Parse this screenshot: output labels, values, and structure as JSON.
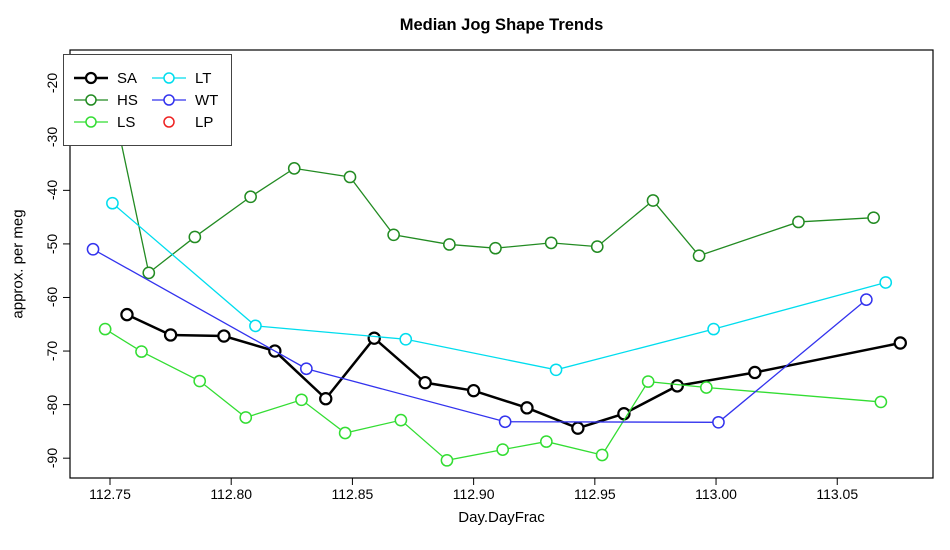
{
  "title": "Median Jog Shape Trends",
  "x_axis": {
    "label": "Day.DayFrac",
    "ticks": [
      "112.75",
      "112.80",
      "112.85",
      "112.90",
      "112.95",
      "113.00",
      "113.05"
    ]
  },
  "y_axis": {
    "label": "approx. per meg",
    "ticks": [
      "-20",
      "-30",
      "-40",
      "-50",
      "-60",
      "-70",
      "-80",
      "-90"
    ]
  },
  "legend": {
    "items": [
      {
        "label": "SA",
        "color": "#000000",
        "line": true
      },
      {
        "label": "HS",
        "color": "#228B22",
        "line": true
      },
      {
        "label": "LS",
        "color": "#33DD33",
        "line": true
      },
      {
        "label": "LT",
        "color": "#00DDEE",
        "line": true
      },
      {
        "label": "WT",
        "color": "#3333EE",
        "line": true
      },
      {
        "label": "LP",
        "color": "#EE2222",
        "line": false
      }
    ]
  },
  "chart_data": {
    "type": "line",
    "title": "Median Jog Shape Trends",
    "xlabel": "Day.DayFrac",
    "ylabel": "approx. per meg",
    "xlim": [
      112.7335,
      113.0895
    ],
    "ylim": [
      -93.7,
      -13.8
    ],
    "x_ticks": [
      112.75,
      112.8,
      112.85,
      112.9,
      112.95,
      113.0,
      113.05
    ],
    "y_ticks": [
      -20,
      -30,
      -40,
      -50,
      -60,
      -70,
      -80,
      -90
    ],
    "grid": false,
    "legend_position": "top-left",
    "marker": "open-circle",
    "series": [
      {
        "name": "SA",
        "color": "#000000",
        "line_width": 2.5,
        "marker_stroke": 2.2,
        "x": [
          112.757,
          112.775,
          112.797,
          112.818,
          112.839,
          112.859,
          112.88,
          112.9,
          112.922,
          112.943,
          112.962,
          112.984,
          113.016,
          113.076
        ],
        "y": [
          -63.2,
          -67.0,
          -67.2,
          -70.0,
          -78.9,
          -67.6,
          -75.9,
          -77.4,
          -80.6,
          -84.4,
          -81.7,
          -76.5,
          -74.0,
          -68.5
        ]
      },
      {
        "name": "HS",
        "color": "#228B22",
        "line_width": 1.3,
        "marker_stroke": 1.5,
        "x": [
          112.748,
          112.766,
          112.785,
          112.808,
          112.826,
          112.849,
          112.867,
          112.89,
          112.909,
          112.932,
          112.951,
          112.974,
          112.993,
          113.034,
          113.065
        ],
        "y": [
          -17.0,
          -55.4,
          -48.7,
          -41.2,
          -35.9,
          -37.5,
          -48.3,
          -50.1,
          -50.8,
          -49.8,
          -50.5,
          -41.9,
          -52.2,
          -45.9,
          -45.1
        ]
      },
      {
        "name": "LS",
        "color": "#33DD33",
        "line_width": 1.3,
        "marker_stroke": 1.5,
        "x": [
          112.748,
          112.763,
          112.787,
          112.806,
          112.829,
          112.847,
          112.87,
          112.889,
          112.912,
          112.93,
          112.953,
          112.972,
          112.996,
          113.068
        ],
        "y": [
          -65.9,
          -70.1,
          -75.6,
          -82.4,
          -79.1,
          -85.3,
          -82.9,
          -90.4,
          -88.4,
          -86.9,
          -89.4,
          -75.7,
          -76.8,
          -79.5
        ]
      },
      {
        "name": "LT",
        "color": "#00DDEE",
        "line_width": 1.3,
        "marker_stroke": 1.5,
        "x": [
          112.751,
          112.81,
          112.872,
          112.934,
          112.999,
          113.07
        ],
        "y": [
          -42.4,
          -65.3,
          -67.8,
          -73.5,
          -65.9,
          -57.2
        ]
      },
      {
        "name": "WT",
        "color": "#3333EE",
        "line_width": 1.3,
        "marker_stroke": 1.5,
        "x": [
          112.743,
          112.831,
          112.913,
          113.001,
          113.062
        ],
        "y": [
          -51.0,
          -73.3,
          -83.2,
          -83.3,
          -60.4
        ]
      },
      {
        "name": "LP",
        "color": "#EE2222",
        "line_width": 1.3,
        "marker_stroke": 1.5,
        "x": [],
        "y": []
      }
    ]
  }
}
